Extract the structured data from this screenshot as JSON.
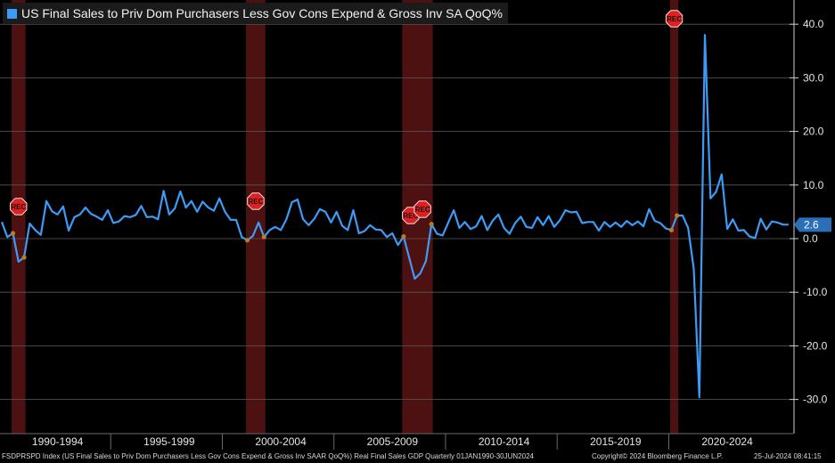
{
  "legend": {
    "label": "US Final Sales to Priv Dom Purchasers Less Gov Cons Expend & Gross Inv SA QoQ%",
    "color": "#3d9bf5"
  },
  "footer": {
    "source": "FSDPRSPD Index (US Final Sales to Priv Dom Purchasers Less Gov Cons Expend & Gross Inv SAAR QoQ%) Real Final Sales GDP  Quarterly 01JAN1990-30JUN2024",
    "copyright": "Copyright© 2024 Bloomberg Finance L.P.",
    "timestamp": "25-Jul-2024 08:41:15"
  },
  "chart_data": {
    "type": "line",
    "title": "",
    "xlabel": "",
    "ylabel": "",
    "x_period": "Quarterly 01JAN1990-30JUN2024",
    "ylim": [
      -35,
      44
    ],
    "y_ticks": [
      "40.0",
      "30.0",
      "20.0",
      "10.0",
      "0.0",
      "-10.0",
      "-20.0",
      "-30.0"
    ],
    "y_tick_values": [
      40,
      30,
      20,
      10,
      0,
      -10,
      -20,
      -30
    ],
    "x_tick_labels": [
      "1990-1994",
      "1995-1999",
      "2000-2004",
      "2005-2009",
      "2010-2014",
      "2015-2019",
      "2020-2024"
    ],
    "grid": true,
    "last_value_label": "2.6",
    "recession_label": "REC",
    "recessions": [
      {
        "start": "1990Q3",
        "end": "1991Q1"
      },
      {
        "start": "2001Q1",
        "end": "2001Q4"
      },
      {
        "start": "2008Q1",
        "end": "2009Q2"
      },
      {
        "start": "2020Q1",
        "end": "2020Q2"
      }
    ],
    "series": [
      {
        "color": "#3d9bf5",
        "start": "1990Q1",
        "values": [
          3.1,
          0.3,
          1.0,
          -4.3,
          -3.5,
          2.8,
          1.6,
          0.7,
          7.0,
          5.1,
          4.5,
          6.0,
          1.5,
          4.0,
          4.5,
          5.8,
          4.6,
          4.1,
          3.5,
          5.3,
          2.9,
          3.2,
          4.2,
          4.0,
          4.4,
          6.1,
          4.0,
          4.1,
          3.6,
          8.9,
          4.5,
          5.6,
          8.8,
          5.8,
          7.0,
          5.0,
          6.9,
          5.8,
          5.2,
          7.5,
          5.0,
          3.5,
          3.5,
          0.3,
          -0.3,
          0.5,
          3.0,
          0.3,
          1.6,
          2.2,
          1.6,
          3.6,
          6.8,
          7.3,
          3.6,
          2.5,
          3.7,
          5.5,
          5.0,
          3.0,
          5.0,
          2.4,
          1.6,
          5.3,
          1.0,
          1.4,
          2.5,
          1.7,
          1.6,
          0.3,
          1.0,
          -1.2,
          0.4,
          -3.5,
          -7.5,
          -6.5,
          -4.2,
          2.7,
          0.9,
          0.6,
          3.0,
          5.3,
          2.0,
          3.1,
          1.8,
          2.3,
          4.2,
          1.6,
          3.4,
          4.5,
          2.0,
          0.9,
          2.9,
          4.1,
          2.2,
          2.0,
          4.0,
          2.5,
          4.2,
          2.2,
          3.4,
          5.3,
          4.9,
          5.0,
          2.9,
          3.1,
          3.1,
          1.5,
          3.1,
          2.2,
          3.0,
          2.2,
          3.3,
          2.5,
          3.2,
          2.3,
          5.5,
          3.3,
          2.9,
          1.9,
          1.6,
          4.3,
          4.3,
          2.0,
          -5.6,
          -29.6,
          38.0,
          7.5,
          8.7,
          12.0,
          1.8,
          3.6,
          1.5,
          1.6,
          0.4,
          0.1,
          3.7,
          1.7,
          3.2,
          3.0,
          2.6,
          2.6
        ]
      }
    ]
  }
}
